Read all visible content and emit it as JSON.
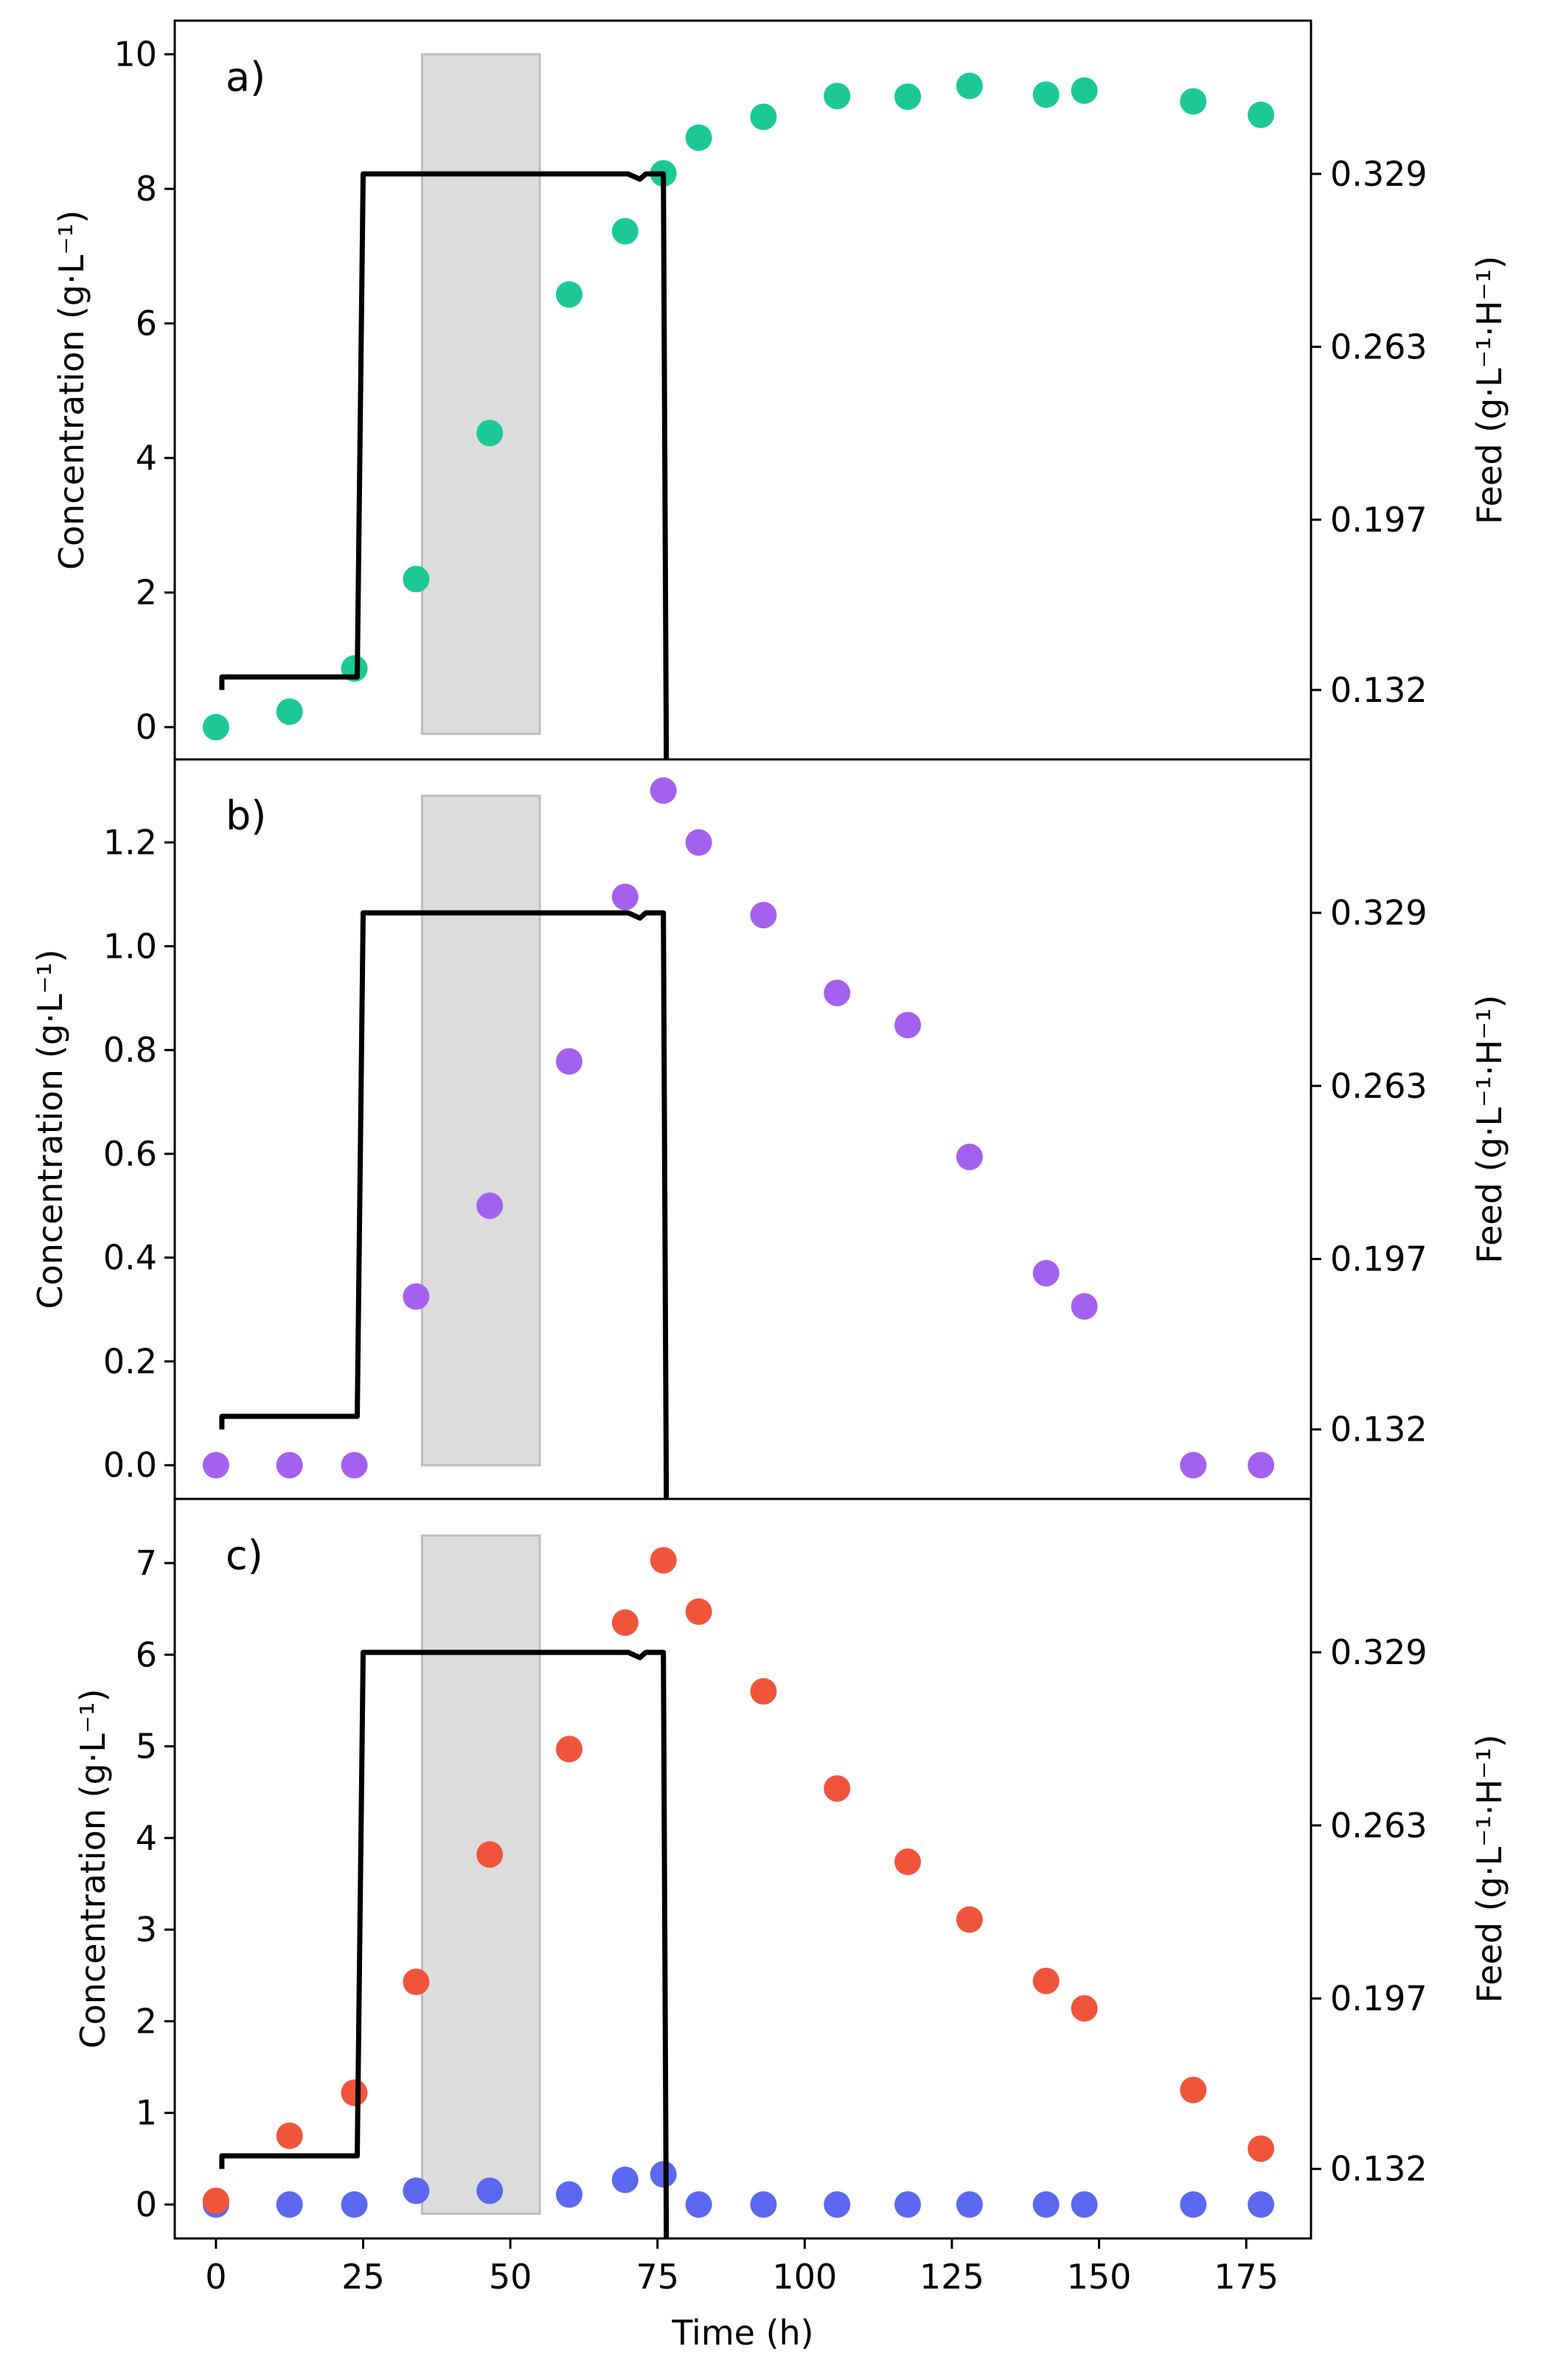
{
  "chart_data": {
    "type": "scatter",
    "xlabel": "Time (h)",
    "xlim": [
      -7,
      186
    ],
    "xticks": [
      0,
      25,
      50,
      75,
      100,
      125,
      150,
      175
    ],
    "colors": {
      "panel_a": "#1cc994",
      "panel_b": "#a461f0",
      "panel_c_red": "#f0553c",
      "panel_c_blue": "#5b68ef",
      "feed": "#000000",
      "shade": "#dcdcdc"
    },
    "shaded_region": [
      35,
      55
    ],
    "feed_axis": {
      "label": "Feed (g·L⁻¹·H⁻¹)",
      "ticks": [
        "0.132",
        "0.197",
        "0.263",
        "0.329"
      ],
      "tick_values": [
        0.132,
        0.197,
        0.263,
        0.329
      ],
      "ylim": [
        0.1055,
        0.3875
      ]
    },
    "feed_profile": {
      "x": [
        1,
        1,
        24,
        25,
        35,
        45,
        55,
        65,
        70,
        72,
        73,
        75,
        76,
        76.5
      ],
      "y": [
        0.132,
        0.137,
        0.137,
        0.329,
        0.329,
        0.329,
        0.329,
        0.329,
        0.329,
        0.327,
        0.329,
        0.329,
        0.329,
        0.1055
      ]
    },
    "panels": [
      {
        "label": "a)",
        "ylabel": "Concentration (g·L⁻¹)",
        "ylim": [
          -0.48,
          10.5
        ],
        "yticks": [
          0,
          2,
          4,
          6,
          8,
          10
        ],
        "yticklabels": [
          "0",
          "2",
          "4",
          "6",
          "8",
          "10"
        ],
        "shade_y": [
          -0.1,
          10.0
        ],
        "series": [
          {
            "color": "#1cc994",
            "x": [
              0,
              12.5,
              23.5,
              34,
              46.5,
              60,
              69.5,
              76,
              82,
              93,
              105.5,
              117.5,
              128,
              141,
              147.5,
              166,
              177.5
            ],
            "y": [
              0.0,
              0.23,
              0.87,
              2.2,
              4.37,
              6.43,
              7.37,
              8.23,
              8.76,
              9.07,
              9.38,
              9.37,
              9.53,
              9.4,
              9.46,
              9.3,
              9.1
            ]
          }
        ]
      },
      {
        "label": "b)",
        "ylabel": "Concentration (g·L⁻¹)",
        "ylim": [
          -0.065,
          1.36
        ],
        "yticks": [
          0.0,
          0.2,
          0.4,
          0.6,
          0.8,
          1.0,
          1.2
        ],
        "yticklabels": [
          "0.0",
          "0.2",
          "0.4",
          "0.6",
          "0.8",
          "1.0",
          "1.2"
        ],
        "shade_y": [
          0.0,
          1.29
        ],
        "series": [
          {
            "color": "#a461f0",
            "x": [
              0,
              12.5,
              23.5,
              34,
              46.5,
              60,
              69.5,
              76,
              82,
              93,
              105.5,
              117.5,
              128,
              141,
              147.5,
              166,
              177.5
            ],
            "y": [
              0.0,
              0.0,
              0.0,
              0.325,
              0.5,
              0.778,
              1.095,
              1.3,
              1.2,
              1.06,
              0.91,
              0.848,
              0.594,
              0.37,
              0.306,
              0.0,
              0.0
            ]
          }
        ]
      },
      {
        "label": "c)",
        "ylabel": "Concentration (g·L⁻¹)",
        "ylim": [
          -0.37,
          7.7
        ],
        "yticks": [
          0,
          1,
          2,
          3,
          4,
          5,
          6,
          7
        ],
        "yticklabels": [
          "0",
          "1",
          "2",
          "3",
          "4",
          "5",
          "6",
          "7"
        ],
        "shade_y": [
          -0.1,
          7.3
        ],
        "series": [
          {
            "color": "#5b68ef",
            "x": [
              0,
              12.5,
              23.5,
              34,
              46.5,
              60,
              69.5,
              76,
              82,
              93,
              105.5,
              117.5,
              128,
              141,
              147.5,
              166,
              177.5
            ],
            "y": [
              0.0,
              0.0,
              0.0,
              0.15,
              0.15,
              0.11,
              0.27,
              0.33,
              0.0,
              0.0,
              0.0,
              0.0,
              0.0,
              0.0,
              0.0,
              0.0,
              0.0
            ]
          },
          {
            "color": "#f0553c",
            "x": [
              0,
              12.5,
              23.5,
              34,
              46.5,
              60,
              69.5,
              76,
              82,
              93,
              105.5,
              117.5,
              128,
              141,
              147.5,
              166,
              177.5
            ],
            "y": [
              0.04,
              0.75,
              1.22,
              2.43,
              3.82,
              4.97,
              6.35,
              7.03,
              6.47,
              5.6,
              4.54,
              3.74,
              3.11,
              2.44,
              2.14,
              1.25,
              0.61
            ]
          }
        ]
      }
    ]
  }
}
